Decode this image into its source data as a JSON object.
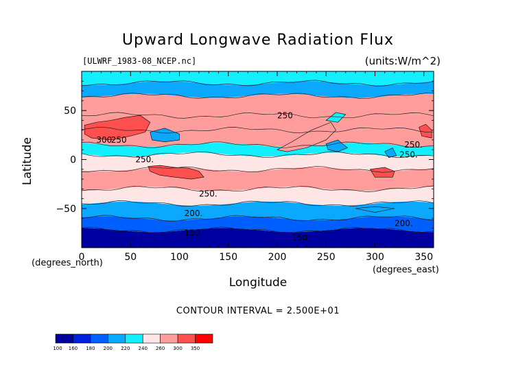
{
  "chart_data": {
    "type": "heatmap",
    "title": "Upward Longwave Radiation Flux",
    "subtitle": "[ULWRF_1983-08_NCEP.nc]",
    "units": "(units:W/m^2)",
    "xlabel": "Longitude",
    "ylabel": "Latitude",
    "x_unit": "(degrees_east)",
    "y_unit": "(degrees_north)",
    "xlim": [
      0,
      360
    ],
    "ylim": [
      -90,
      90
    ],
    "x_ticks": [
      0,
      50,
      100,
      150,
      200,
      250,
      300,
      350
    ],
    "y_ticks": [
      50,
      0,
      -50
    ],
    "contour_interval_text": "CONTOUR INTERVAL = 2.500E+01",
    "contour_labels": [
      {
        "text": "300",
        "lon": 15,
        "lat": 20
      },
      {
        "text": "250",
        "lon": 30,
        "lat": 20
      },
      {
        "text": "250",
        "lon": 200,
        "lat": 45
      },
      {
        "text": "250.",
        "lon": 55,
        "lat": 0
      },
      {
        "text": "250.",
        "lon": 120,
        "lat": -35
      },
      {
        "text": "250.",
        "lon": 330,
        "lat": 15
      },
      {
        "text": "250.",
        "lon": 325,
        "lat": 5
      },
      {
        "text": "200.",
        "lon": 105,
        "lat": -55
      },
      {
        "text": "200.",
        "lon": 320,
        "lat": -65
      },
      {
        "text": "150",
        "lon": 105,
        "lat": -75
      },
      {
        "text": "150",
        "lon": 215,
        "lat": -80
      }
    ],
    "colorbar": {
      "ticks": [
        "100",
        "160",
        "180",
        "200",
        "220",
        "240",
        "260",
        "300",
        "350"
      ],
      "colors": [
        "#0000a0",
        "#0020e0",
        "#0060ff",
        "#0aa8ff",
        "#12f0ff",
        "#ffe6e6",
        "#ff9c9c",
        "#ff5050",
        "#ff0000"
      ]
    },
    "bands": [
      {
        "lat": [
          90,
          78
        ],
        "value": 230
      },
      {
        "lat": [
          78,
          65
        ],
        "value": 215
      },
      {
        "lat": [
          65,
          45
        ],
        "value": 270
      },
      {
        "lat": [
          45,
          30
        ],
        "value": 275
      },
      {
        "lat": [
          30,
          15
        ],
        "value": 285
      },
      {
        "lat": [
          15,
          5
        ],
        "value": 230
      },
      {
        "lat": [
          5,
          -10
        ],
        "value": 240
      },
      {
        "lat": [
          -10,
          -30
        ],
        "value": 285
      },
      {
        "lat": [
          -30,
          -45
        ],
        "value": 250
      },
      {
        "lat": [
          -45,
          -60
        ],
        "value": 215
      },
      {
        "lat": [
          -60,
          -72
        ],
        "value": 185
      },
      {
        "lat": [
          -72,
          -90
        ],
        "value": 150
      }
    ]
  }
}
